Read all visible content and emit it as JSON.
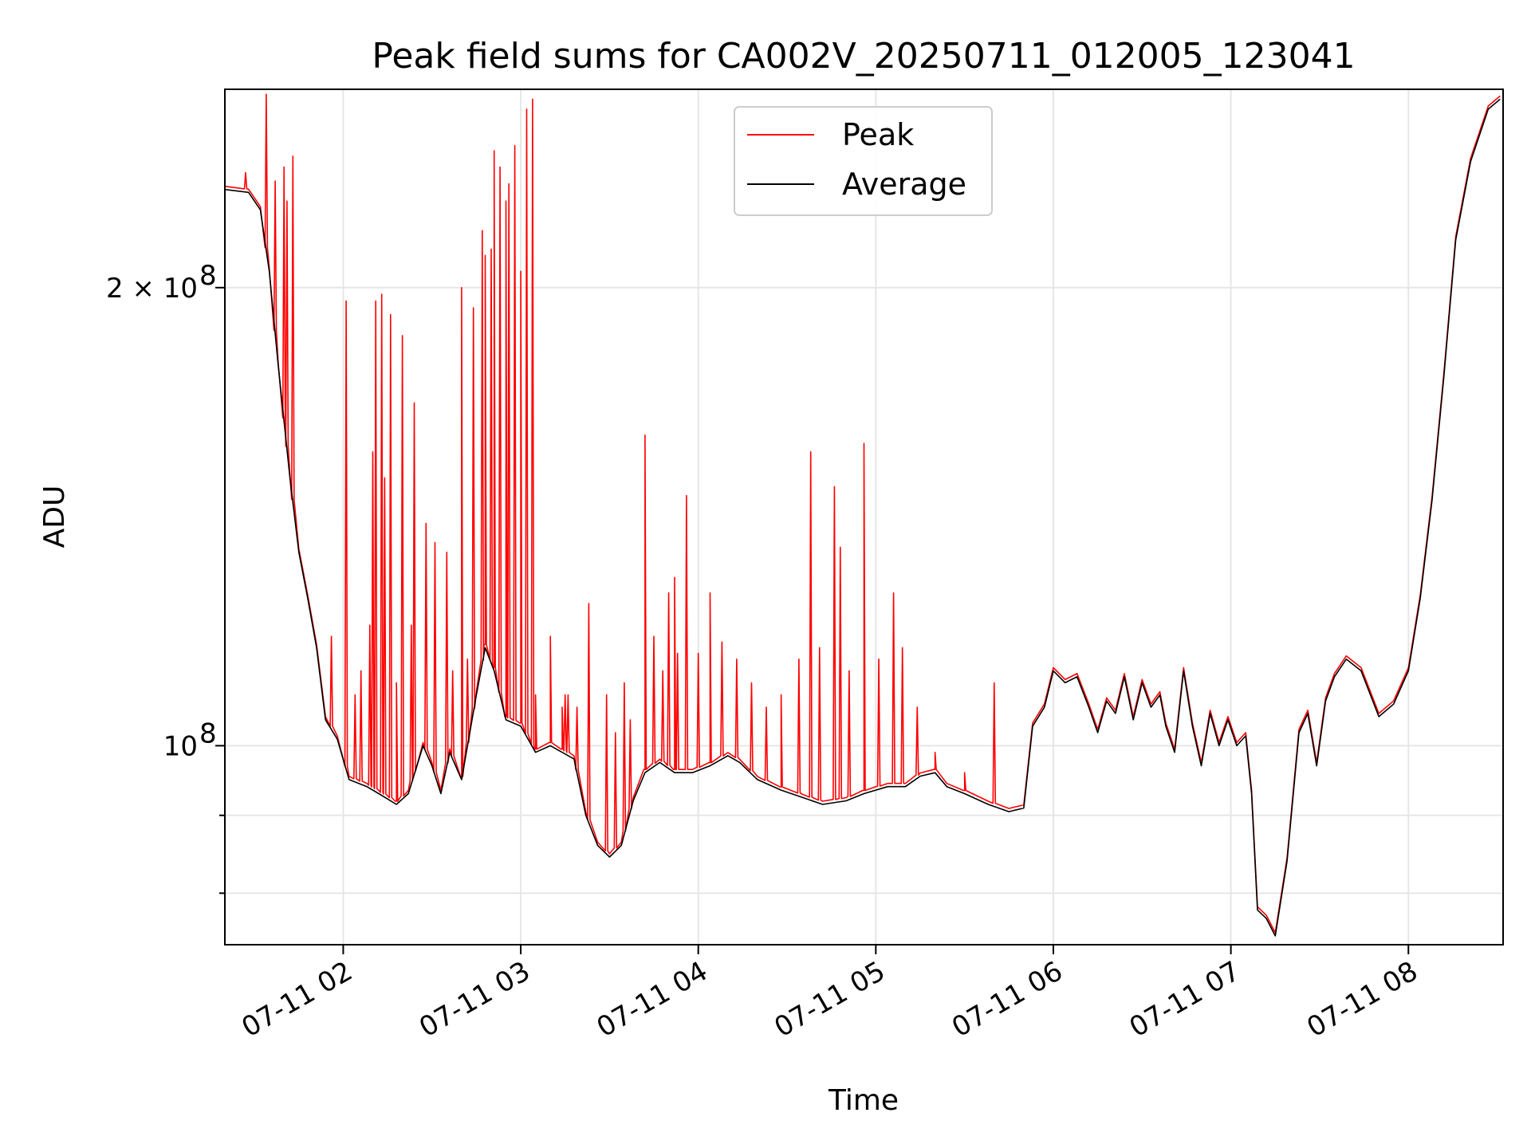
{
  "chart_data": {
    "type": "line",
    "title": "Peak field sums for CA002V_20250711_012005_123041",
    "xlabel": "Time",
    "ylabel": "ADU",
    "y_scale": "log",
    "xlim": [
      "2025-07-11 01:20",
      "2025-07-11 08:32"
    ],
    "ylim": [
      74000000,
      270000000
    ],
    "grid": true,
    "legend_position": "top-center",
    "x_ticks": [
      {
        "value": "2025-07-11 02:00",
        "label": "07-11 02"
      },
      {
        "value": "2025-07-11 03:00",
        "label": "07-11 03"
      },
      {
        "value": "2025-07-11 04:00",
        "label": "07-11 04"
      },
      {
        "value": "2025-07-11 05:00",
        "label": "07-11 05"
      },
      {
        "value": "2025-07-11 06:00",
        "label": "07-11 06"
      },
      {
        "value": "2025-07-11 07:00",
        "label": "07-11 07"
      },
      {
        "value": "2025-07-11 08:00",
        "label": "07-11 08"
      }
    ],
    "y_ticks": [
      {
        "value": 200000000,
        "label_base": "2 × 10",
        "label_exp": "8"
      },
      {
        "value": 100000000,
        "label_base": "10",
        "label_exp": "8"
      }
    ],
    "y_minor_ticks": [
      90000000,
      80000000
    ],
    "series": [
      {
        "name": "Average",
        "color": "#000000",
        "points": [
          [
            "2025-07-11 01:20",
            232000000
          ],
          [
            "2025-07-11 01:28",
            231000000
          ],
          [
            "2025-07-11 01:32",
            225000000
          ],
          [
            "2025-07-11 01:35",
            205000000
          ],
          [
            "2025-07-11 01:38",
            178000000
          ],
          [
            "2025-07-11 01:42",
            150000000
          ],
          [
            "2025-07-11 01:45",
            134000000
          ],
          [
            "2025-07-11 01:48",
            125000000
          ],
          [
            "2025-07-11 01:51",
            116000000
          ],
          [
            "2025-07-11 01:54",
            104000000
          ],
          [
            "2025-07-11 01:58",
            101000000
          ],
          [
            "2025-07-11 02:02",
            95000000
          ],
          [
            "2025-07-11 02:08",
            94000000
          ],
          [
            "2025-07-11 02:12",
            93000000
          ],
          [
            "2025-07-11 02:18",
            91500000
          ],
          [
            "2025-07-11 02:22",
            93000000
          ],
          [
            "2025-07-11 02:27",
            100000000
          ],
          [
            "2025-07-11 02:30",
            97000000
          ],
          [
            "2025-07-11 02:33",
            93000000
          ],
          [
            "2025-07-11 02:36",
            99000000
          ],
          [
            "2025-07-11 02:40",
            95000000
          ],
          [
            "2025-07-11 02:45",
            108000000
          ],
          [
            "2025-07-11 02:48",
            116000000
          ],
          [
            "2025-07-11 02:51",
            112000000
          ],
          [
            "2025-07-11 02:55",
            104000000
          ],
          [
            "2025-07-11 03:00",
            103000000
          ],
          [
            "2025-07-11 03:05",
            99000000
          ],
          [
            "2025-07-11 03:10",
            100000000
          ],
          [
            "2025-07-11 03:14",
            99000000
          ],
          [
            "2025-07-11 03:18",
            98000000
          ],
          [
            "2025-07-11 03:22",
            90000000
          ],
          [
            "2025-07-11 03:26",
            86000000
          ],
          [
            "2025-07-11 03:30",
            84500000
          ],
          [
            "2025-07-11 03:34",
            86000000
          ],
          [
            "2025-07-11 03:38",
            92000000
          ],
          [
            "2025-07-11 03:42",
            96000000
          ],
          [
            "2025-07-11 03:47",
            97500000
          ],
          [
            "2025-07-11 03:52",
            96000000
          ],
          [
            "2025-07-11 03:58",
            96000000
          ],
          [
            "2025-07-11 04:04",
            97000000
          ],
          [
            "2025-07-11 04:10",
            98500000
          ],
          [
            "2025-07-11 04:14",
            97500000
          ],
          [
            "2025-07-11 04:20",
            95000000
          ],
          [
            "2025-07-11 04:28",
            93500000
          ],
          [
            "2025-07-11 04:35",
            92500000
          ],
          [
            "2025-07-11 04:42",
            91500000
          ],
          [
            "2025-07-11 04:50",
            92000000
          ],
          [
            "2025-07-11 04:56",
            93000000
          ],
          [
            "2025-07-11 05:04",
            94000000
          ],
          [
            "2025-07-11 05:10",
            94000000
          ],
          [
            "2025-07-11 05:15",
            95500000
          ],
          [
            "2025-07-11 05:20",
            96000000
          ],
          [
            "2025-07-11 05:24",
            94000000
          ],
          [
            "2025-07-11 05:30",
            93000000
          ],
          [
            "2025-07-11 05:38",
            91500000
          ],
          [
            "2025-07-11 05:45",
            90500000
          ],
          [
            "2025-07-11 05:50",
            91000000
          ],
          [
            "2025-07-11 05:53",
            103000000
          ],
          [
            "2025-07-11 05:57",
            106000000
          ],
          [
            "2025-07-11 06:00",
            112000000
          ],
          [
            "2025-07-11 06:04",
            110000000
          ],
          [
            "2025-07-11 06:08",
            111000000
          ],
          [
            "2025-07-11 06:12",
            106000000
          ],
          [
            "2025-07-11 06:15",
            102000000
          ],
          [
            "2025-07-11 06:18",
            107000000
          ],
          [
            "2025-07-11 06:21",
            105000000
          ],
          [
            "2025-07-11 06:24",
            111000000
          ],
          [
            "2025-07-11 06:27",
            104000000
          ],
          [
            "2025-07-11 06:30",
            110000000
          ],
          [
            "2025-07-11 06:33",
            106000000
          ],
          [
            "2025-07-11 06:36",
            108000000
          ],
          [
            "2025-07-11 06:38",
            103000000
          ],
          [
            "2025-07-11 06:41",
            99000000
          ],
          [
            "2025-07-11 06:44",
            112000000
          ],
          [
            "2025-07-11 06:47",
            103000000
          ],
          [
            "2025-07-11 06:50",
            97000000
          ],
          [
            "2025-07-11 06:53",
            105000000
          ],
          [
            "2025-07-11 06:56",
            100000000
          ],
          [
            "2025-07-11 06:59",
            104000000
          ],
          [
            "2025-07-11 07:02",
            100000000
          ],
          [
            "2025-07-11 07:05",
            101500000
          ],
          [
            "2025-07-11 07:07",
            93000000
          ],
          [
            "2025-07-11 07:09",
            78000000
          ],
          [
            "2025-07-11 07:12",
            77000000
          ],
          [
            "2025-07-11 07:15",
            75000000
          ],
          [
            "2025-07-11 07:19",
            84000000
          ],
          [
            "2025-07-11 07:23",
            102000000
          ],
          [
            "2025-07-11 07:26",
            105000000
          ],
          [
            "2025-07-11 07:29",
            97000000
          ],
          [
            "2025-07-11 07:32",
            107000000
          ],
          [
            "2025-07-11 07:35",
            111000000
          ],
          [
            "2025-07-11 07:39",
            114000000
          ],
          [
            "2025-07-11 07:44",
            112000000
          ],
          [
            "2025-07-11 07:50",
            104500000
          ],
          [
            "2025-07-11 07:55",
            106500000
          ],
          [
            "2025-07-11 08:00",
            112000000
          ],
          [
            "2025-07-11 08:04",
            125000000
          ],
          [
            "2025-07-11 08:08",
            145000000
          ],
          [
            "2025-07-11 08:12",
            175000000
          ],
          [
            "2025-07-11 08:16",
            215000000
          ],
          [
            "2025-07-11 08:21",
            242000000
          ],
          [
            "2025-07-11 08:27",
            262000000
          ],
          [
            "2025-07-11 08:31",
            266000000
          ]
        ]
      },
      {
        "name": "Peak",
        "color": "#ff0000",
        "spikes": [
          [
            "2025-07-11 01:27",
            238000000
          ],
          [
            "2025-07-11 01:34",
            268000000
          ],
          [
            "2025-07-11 01:37",
            235000000
          ],
          [
            "2025-07-11 01:40",
            240000000
          ],
          [
            "2025-07-11 01:41",
            228000000
          ],
          [
            "2025-07-11 01:43",
            244000000
          ],
          [
            "2025-07-11 01:56",
            118000000
          ],
          [
            "2025-07-11 02:01",
            196000000
          ],
          [
            "2025-07-11 02:04",
            108000000
          ],
          [
            "2025-07-11 02:06",
            112000000
          ],
          [
            "2025-07-11 02:09",
            120000000
          ],
          [
            "2025-07-11 02:10",
            156000000
          ],
          [
            "2025-07-11 02:11",
            196000000
          ],
          [
            "2025-07-11 02:13",
            198000000
          ],
          [
            "2025-07-11 02:14",
            150000000
          ],
          [
            "2025-07-11 02:16",
            192000000
          ],
          [
            "2025-07-11 02:18",
            110000000
          ],
          [
            "2025-07-11 02:20",
            186000000
          ],
          [
            "2025-07-11 02:23",
            120000000
          ],
          [
            "2025-07-11 02:24",
            168000000
          ],
          [
            "2025-07-11 02:28",
            140000000
          ],
          [
            "2025-07-11 02:31",
            136000000
          ],
          [
            "2025-07-11 02:35",
            134000000
          ],
          [
            "2025-07-11 02:37",
            112000000
          ],
          [
            "2025-07-11 02:40",
            200000000
          ],
          [
            "2025-07-11 02:42",
            114000000
          ],
          [
            "2025-07-11 02:44",
            194000000
          ],
          [
            "2025-07-11 02:47",
            218000000
          ],
          [
            "2025-07-11 02:48",
            210000000
          ],
          [
            "2025-07-11 02:50",
            212000000
          ],
          [
            "2025-07-11 02:51",
            246000000
          ],
          [
            "2025-07-11 02:53",
            240000000
          ],
          [
            "2025-07-11 02:55",
            228000000
          ],
          [
            "2025-07-11 02:56",
            234000000
          ],
          [
            "2025-07-11 02:58",
            248000000
          ],
          [
            "2025-07-11 03:00",
            205000000
          ],
          [
            "2025-07-11 03:02",
            262000000
          ],
          [
            "2025-07-11 03:04",
            266000000
          ],
          [
            "2025-07-11 03:05",
            108000000
          ],
          [
            "2025-07-11 03:10",
            118000000
          ],
          [
            "2025-07-11 03:14",
            106000000
          ],
          [
            "2025-07-11 03:15",
            108000000
          ],
          [
            "2025-07-11 03:16",
            108000000
          ],
          [
            "2025-07-11 03:19",
            106000000
          ],
          [
            "2025-07-11 03:23",
            124000000
          ],
          [
            "2025-07-11 03:29",
            108000000
          ],
          [
            "2025-07-11 03:32",
            102000000
          ],
          [
            "2025-07-11 03:35",
            110000000
          ],
          [
            "2025-07-11 03:37",
            104000000
          ],
          [
            "2025-07-11 03:42",
            160000000
          ],
          [
            "2025-07-11 03:45",
            118000000
          ],
          [
            "2025-07-11 03:48",
            112000000
          ],
          [
            "2025-07-11 03:50",
            126000000
          ],
          [
            "2025-07-11 03:52",
            129000000
          ],
          [
            "2025-07-11 03:53",
            115000000
          ],
          [
            "2025-07-11 03:56",
            146000000
          ],
          [
            "2025-07-11 04:00",
            115000000
          ],
          [
            "2025-07-11 04:04",
            126000000
          ],
          [
            "2025-07-11 04:08",
            117000000
          ],
          [
            "2025-07-11 04:13",
            114000000
          ],
          [
            "2025-07-11 04:18",
            110000000
          ],
          [
            "2025-07-11 04:23",
            106000000
          ],
          [
            "2025-07-11 04:28",
            108000000
          ],
          [
            "2025-07-11 04:34",
            114000000
          ],
          [
            "2025-07-11 04:38",
            156000000
          ],
          [
            "2025-07-11 04:41",
            116000000
          ],
          [
            "2025-07-11 04:46",
            148000000
          ],
          [
            "2025-07-11 04:48",
            135000000
          ],
          [
            "2025-07-11 04:51",
            112000000
          ],
          [
            "2025-07-11 04:56",
            158000000
          ],
          [
            "2025-07-11 05:01",
            114000000
          ],
          [
            "2025-07-11 05:06",
            126000000
          ],
          [
            "2025-07-11 05:09",
            116000000
          ],
          [
            "2025-07-11 05:14",
            106000000
          ],
          [
            "2025-07-11 05:20",
            99000000
          ],
          [
            "2025-07-11 05:30",
            96000000
          ],
          [
            "2025-07-11 05:40",
            110000000
          ]
        ]
      }
    ]
  }
}
